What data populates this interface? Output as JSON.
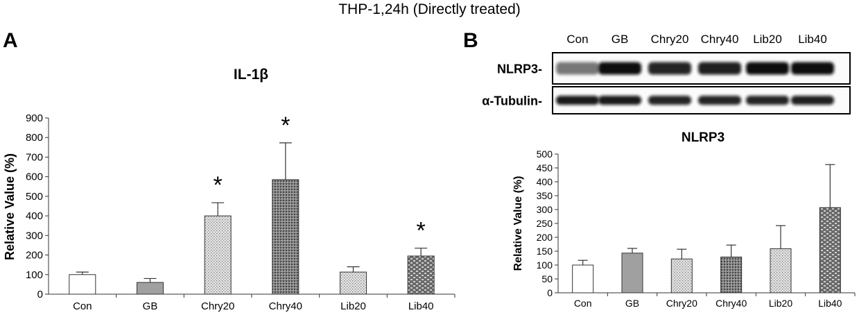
{
  "figure_title": "THP-1,24h (Directly treated)",
  "panel_a_label": "A",
  "panel_b_label": "B",
  "blot": {
    "lanes": [
      "Con",
      "GB",
      "Chry20",
      "Chry40",
      "Lib20",
      "Lib40"
    ],
    "rows": [
      {
        "label": "NLRP3-",
        "band_intensity": [
          0.55,
          1.0,
          0.9,
          0.92,
          1.0,
          1.0
        ]
      },
      {
        "label": "α-Tubulin-",
        "band_intensity": [
          0.95,
          0.95,
          0.9,
          0.9,
          0.9,
          0.92
        ]
      }
    ]
  },
  "chart_data": [
    {
      "type": "bar",
      "title": "IL-1β",
      "xlabel": "",
      "ylabel": "Relative Value (%)",
      "ylim": [
        0,
        900
      ],
      "yticks": [
        0,
        100,
        200,
        300,
        400,
        500,
        600,
        700,
        800,
        900
      ],
      "categories": [
        "Con",
        "GB",
        "Chry20",
        "Chry40",
        "Lib20",
        "Lib40"
      ],
      "values": [
        100,
        60,
        400,
        585,
        113,
        195
      ],
      "errors": [
        13,
        20,
        67,
        188,
        27,
        40
      ],
      "significance": [
        "",
        "",
        "*",
        "*",
        "",
        "*"
      ],
      "fills": [
        "white",
        "#a0a0a0",
        "dots-light",
        "dots-dark",
        "dots-light",
        "brick"
      ]
    },
    {
      "type": "bar",
      "title": "NLRP3",
      "xlabel": "",
      "ylabel": "Relative Value (%)",
      "ylim": [
        0,
        500
      ],
      "yticks": [
        0,
        50,
        100,
        150,
        200,
        250,
        300,
        350,
        400,
        450,
        500
      ],
      "categories": [
        "Con",
        "GB",
        "Chry20",
        "Chry40",
        "Lib20",
        "Lib40"
      ],
      "values": [
        100,
        143,
        122,
        129,
        159,
        307
      ],
      "errors": [
        17,
        17,
        35,
        43,
        83,
        155
      ],
      "significance": [
        "",
        "",
        "",
        "",
        "",
        ""
      ],
      "fills": [
        "white",
        "#a0a0a0",
        "dots-light",
        "dots-dark",
        "dots-light",
        "brick"
      ]
    }
  ]
}
